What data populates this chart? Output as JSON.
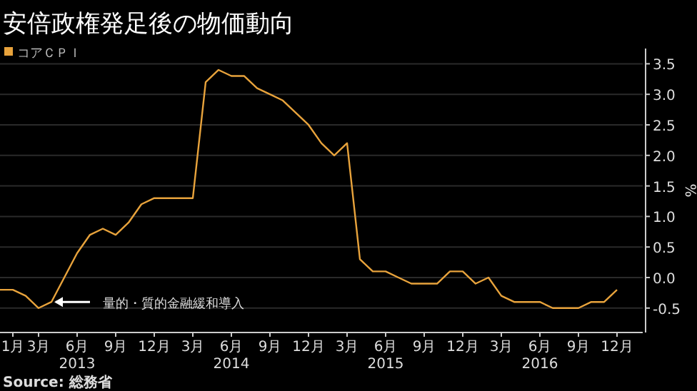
{
  "chart_data": {
    "type": "line",
    "title": "安倍政権発足後の物価動向",
    "ylabel": "%",
    "x": [
      "2012-12",
      "2013-01",
      "2013-02",
      "2013-03",
      "2013-04",
      "2013-05",
      "2013-06",
      "2013-07",
      "2013-08",
      "2013-09",
      "2013-10",
      "2013-11",
      "2013-12",
      "2014-01",
      "2014-02",
      "2014-03",
      "2014-04",
      "2014-05",
      "2014-06",
      "2014-07",
      "2014-08",
      "2014-09",
      "2014-10",
      "2014-11",
      "2014-12",
      "2015-01",
      "2015-02",
      "2015-03",
      "2015-04",
      "2015-05",
      "2015-06",
      "2015-07",
      "2015-08",
      "2015-09",
      "2015-10",
      "2015-11",
      "2015-12",
      "2016-01",
      "2016-02",
      "2016-03",
      "2016-04",
      "2016-05",
      "2016-06",
      "2016-07",
      "2016-08",
      "2016-09",
      "2016-10",
      "2016-11",
      "2016-12"
    ],
    "series": [
      {
        "name": "コアＣＰＩ",
        "color": "#e8a33c",
        "values": [
          -0.2,
          -0.2,
          -0.3,
          -0.5,
          -0.4,
          0.0,
          0.4,
          0.7,
          0.8,
          0.7,
          0.9,
          1.2,
          1.3,
          1.3,
          1.3,
          1.3,
          3.2,
          3.4,
          3.3,
          3.3,
          3.1,
          3.0,
          2.9,
          2.7,
          2.5,
          2.2,
          2.0,
          2.2,
          0.3,
          0.1,
          0.1,
          0.0,
          -0.1,
          -0.1,
          -0.1,
          0.1,
          0.1,
          -0.1,
          0.0,
          -0.3,
          -0.4,
          -0.4,
          -0.4,
          -0.5,
          -0.5,
          -0.5,
          -0.4,
          -0.4,
          -0.2
        ]
      }
    ],
    "xlim": [
      "2012-12",
      "2017-02"
    ],
    "xticks": [
      {
        "value": "2013-01",
        "label": "1月"
      },
      {
        "value": "2013-03",
        "label": "3月"
      },
      {
        "value": "2013-06",
        "label": "6月\n2013"
      },
      {
        "value": "2013-09",
        "label": "9月"
      },
      {
        "value": "2013-12",
        "label": "12月"
      },
      {
        "value": "2014-03",
        "label": "3月"
      },
      {
        "value": "2014-06",
        "label": "6月\n2014"
      },
      {
        "value": "2014-09",
        "label": "9月"
      },
      {
        "value": "2014-12",
        "label": "12月"
      },
      {
        "value": "2015-03",
        "label": "3月"
      },
      {
        "value": "2015-06",
        "label": "6月\n2015"
      },
      {
        "value": "2015-09",
        "label": "9月"
      },
      {
        "value": "2015-12",
        "label": "12月"
      },
      {
        "value": "2016-03",
        "label": "3月"
      },
      {
        "value": "2016-06",
        "label": "6月\n2016"
      },
      {
        "value": "2016-09",
        "label": "9月"
      },
      {
        "value": "2016-12",
        "label": "12月"
      }
    ],
    "ylim": [
      -0.9,
      3.75
    ],
    "yticks": [
      {
        "value": -0.5,
        "label": "-0.5"
      },
      {
        "value": 0,
        "label": "0.0"
      },
      {
        "value": 0.5,
        "label": "0.5"
      },
      {
        "value": 1,
        "label": "1.0"
      },
      {
        "value": 1.5,
        "label": "1.5"
      },
      {
        "value": 2,
        "label": "2.0"
      },
      {
        "value": 2.5,
        "label": "2.5"
      },
      {
        "value": 3,
        "label": "3.0"
      },
      {
        "value": 3.5,
        "label": "3.5"
      }
    ],
    "grid": "y",
    "legend": "top left",
    "annotations": [
      {
        "text": "量的・質的金融緩和導入",
        "x": "2013-04",
        "y": -0.4
      },
      "Source: 総務省"
    ]
  }
}
